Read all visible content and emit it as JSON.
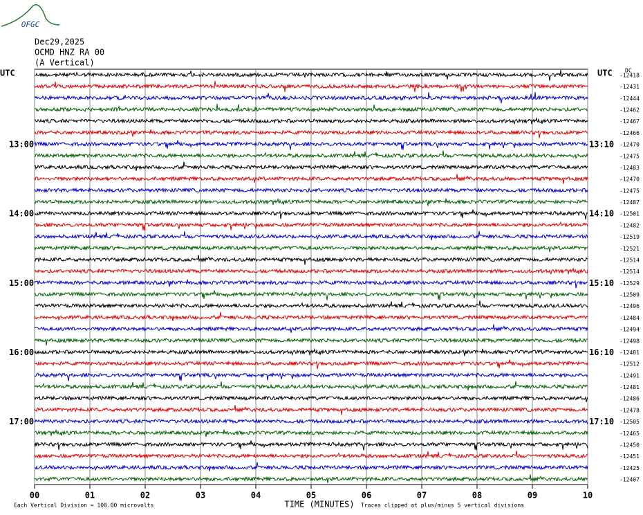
{
  "chart_data": {
    "type": "helicorder",
    "logo": "OFGC",
    "date": "Dec29,2025",
    "station": "OCMD HNZ RA 00",
    "component": "(A Vertical)",
    "timezone": "UTC",
    "dc_label": "DC",
    "colors": [
      "#000000",
      "#e00000",
      "#0000d0",
      "#006000"
    ],
    "xlabel": "TIME (MINUTES)",
    "xlim": [
      0,
      10
    ],
    "xticks": [
      {
        "value": 0,
        "label": "00"
      },
      {
        "value": 1,
        "label": "01"
      },
      {
        "value": 2,
        "label": "02"
      },
      {
        "value": 3,
        "label": "03"
      },
      {
        "value": 4,
        "label": "04"
      },
      {
        "value": 5,
        "label": "05"
      },
      {
        "value": 6,
        "label": "06"
      },
      {
        "value": 7,
        "label": "07"
      },
      {
        "value": 8,
        "label": "08"
      },
      {
        "value": 9,
        "label": "09"
      },
      10
    ],
    "left_labels": [
      null,
      null,
      null,
      null,
      null,
      null,
      "13:00",
      null,
      null,
      null,
      null,
      null,
      "14:00",
      null,
      null,
      null,
      null,
      null,
      "15:00",
      null,
      null,
      null,
      null,
      null,
      "16:00",
      null,
      null,
      null,
      null,
      null,
      "17:00",
      null,
      null,
      null,
      null,
      null
    ],
    "right_labels": [
      null,
      null,
      null,
      null,
      null,
      null,
      "13:10",
      null,
      null,
      null,
      null,
      null,
      "14:10",
      null,
      null,
      null,
      null,
      null,
      "15:10",
      null,
      null,
      null,
      null,
      null,
      "16:10",
      null,
      null,
      null,
      null,
      null,
      "17:10",
      null,
      null,
      null,
      null,
      null
    ],
    "offsets": [
      -12418,
      -12431,
      -12444,
      -12462,
      -12467,
      -12466,
      -12470,
      -12475,
      -12483,
      -12470,
      -12475,
      -12487,
      -12501,
      -12482,
      -12519,
      -12521,
      -12514,
      -12514,
      -12529,
      -12509,
      -12496,
      -12484,
      -12494,
      -12498,
      -12481,
      -12512,
      -12491,
      -12481,
      -12486,
      -12478,
      -12505,
      -12465,
      -12450,
      -12451,
      -12425,
      -12407
    ],
    "footnote_left": "Each Vertical Division = 100.00 microvolts",
    "footnote_right": "Traces clipped at plus/minus 5 vertical divisions"
  }
}
